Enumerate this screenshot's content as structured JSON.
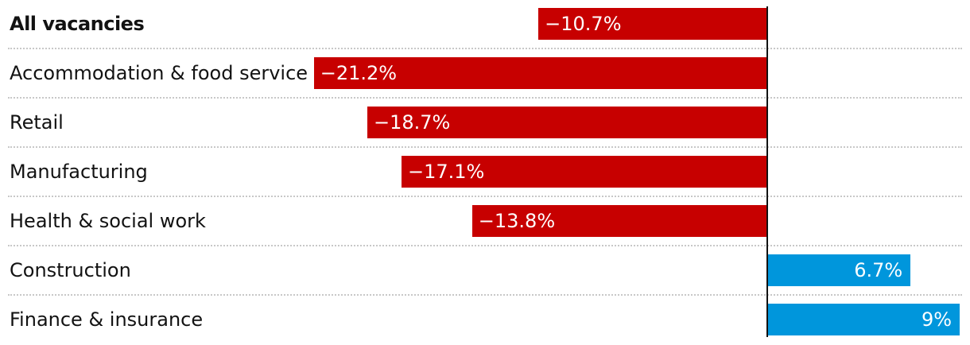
{
  "chart_data": {
    "type": "bar",
    "orientation": "horizontal",
    "categories": [
      "All vacancies",
      "Accommodation & food service",
      "Retail",
      "Manufacturing",
      "Health & social work",
      "Construction",
      "Finance & insurance"
    ],
    "values": [
      -10.7,
      -21.2,
      -18.7,
      -17.1,
      -13.8,
      6.7,
      9
    ],
    "value_labels": [
      "−10.7%",
      "−21.2%",
      "−18.7%",
      "−17.1%",
      "−13.8%",
      "6.7%",
      "9%"
    ],
    "title": "",
    "xlabel": "",
    "ylabel": "",
    "colors": {
      "negative": "#c70000",
      "positive": "#0096dc",
      "axis": "#121212",
      "grid": "#c8c8c8"
    },
    "highlighted_category": "All vacancies",
    "grid": "dotted row separators",
    "legend": "none"
  }
}
